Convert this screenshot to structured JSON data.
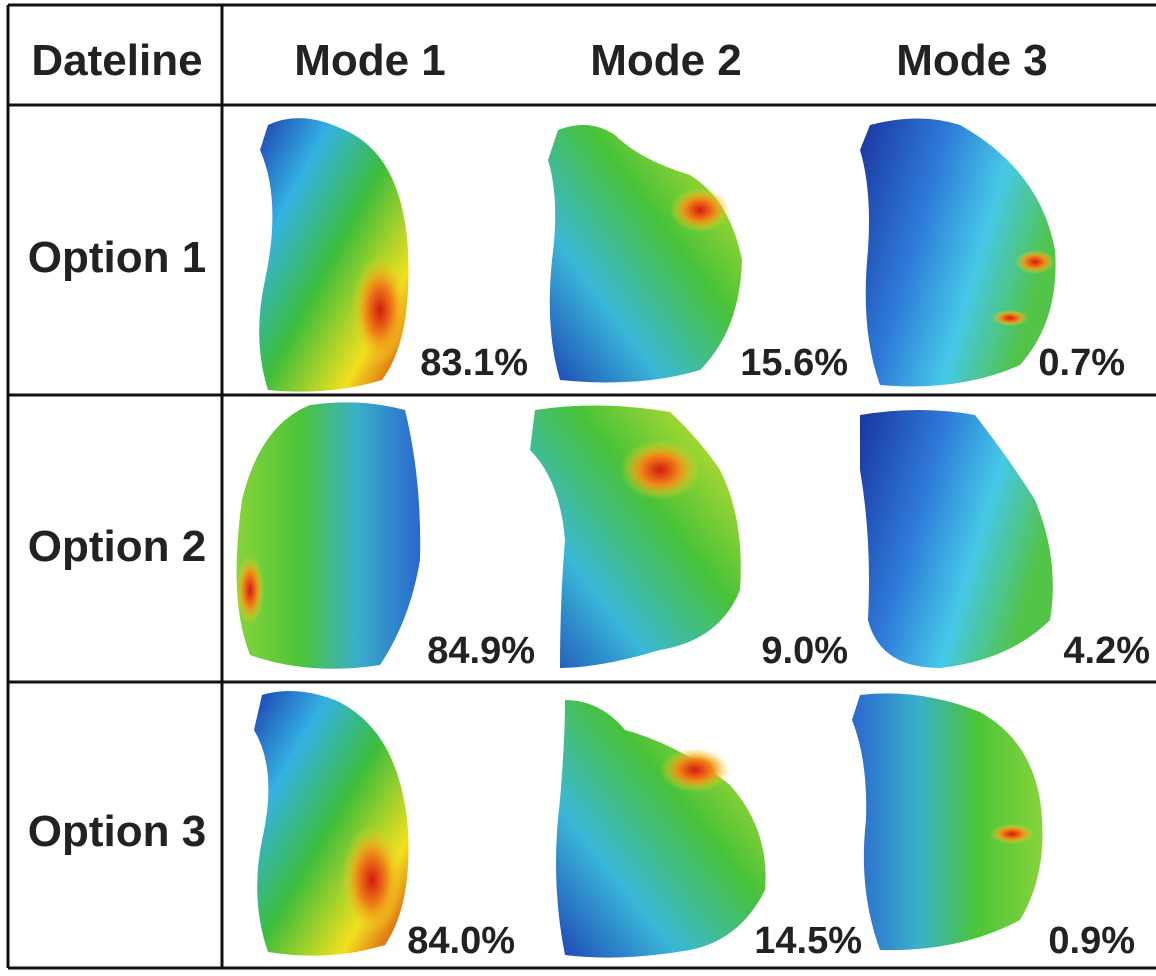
{
  "table": {
    "corner": "Dateline",
    "columns": [
      "Mode 1",
      "Mode 2",
      "Mode 3"
    ],
    "rows": [
      {
        "label": "Option 1",
        "cells": [
          "83.1%",
          "15.6%",
          "0.7%"
        ]
      },
      {
        "label": "Option 2",
        "cells": [
          "84.9%",
          "9.0%",
          "4.2%"
        ]
      },
      {
        "label": "Option 3",
        "cells": [
          "84.0%",
          "14.5%",
          "0.9%"
        ]
      }
    ]
  }
}
